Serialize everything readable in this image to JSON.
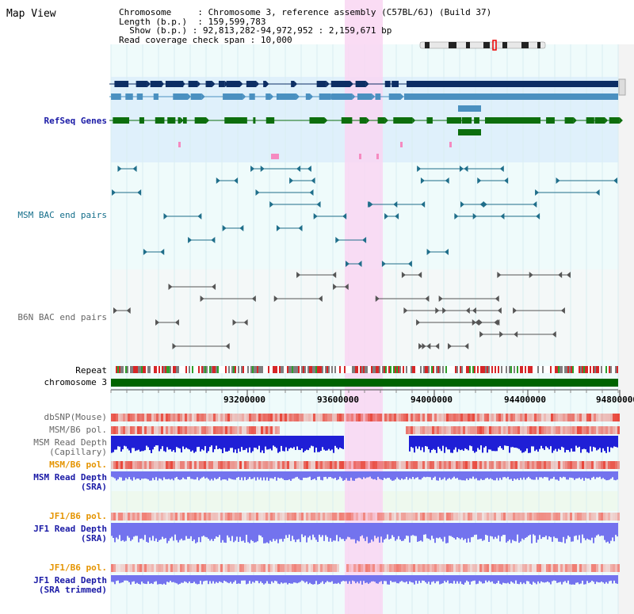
{
  "title": "Map View",
  "info": {
    "chromosome_key": "Chromosome",
    "chromosome_val": "Chromosome 3, reference assembly (C57BL/6J) (Build 37)",
    "length_key": "Length (b.p.)",
    "length_val": "159,599,783",
    "show_key": "Show (b.p.)",
    "show_val": "92,813,282-94,972,952 : 2,159,671 bp",
    "read_key": "Read coverage check span",
    "read_val": "10,000"
  },
  "tracks": {
    "refseq": "RefSeq Genes",
    "msm_bac": "MSM BAC end pairs",
    "b6n_bac": "B6N BAC end pairs",
    "repeat": "Repeat",
    "chromosome": "chromosome 3",
    "dbsnp": "dbSNP(Mouse)",
    "msm_b6_pol_1": "MSM/B6 pol.",
    "msm_depth_cap_1": "MSM Read Depth",
    "msm_depth_cap_2": "(Capillary)",
    "msm_b6_pol_2": "MSM/B6 pol.",
    "msm_depth_sra_1": "MSM Read Depth",
    "msm_depth_sra_2": "(SRA)",
    "jf1_b6_pol_1": "JF1/B6 pol.",
    "jf1_depth_sra_1": "JF1 Read Depth",
    "jf1_depth_sra_2": "(SRA)",
    "jf1_b6_pol_2": "JF1/B6 pol.",
    "jf1_depth_trim_1": "JF1 Read Depth",
    "jf1_depth_trim_2": "(SRA trimmed)"
  },
  "axis": {
    "ticks": [
      "93200000",
      "93600000",
      "94000000",
      "94400000",
      "94800000"
    ]
  },
  "colors": {
    "refseq_bg": "#dff0fb",
    "main_bg": "#effbfb",
    "highlight": "#f9d6f2",
    "dark_gene": "#0d2e64",
    "mid_gene": "#4a90c0",
    "green_gene": "#0d6e0d",
    "chromosome": "#006400",
    "depth_dark": "#1f1fd6",
    "depth_light": "#7373ee"
  }
}
